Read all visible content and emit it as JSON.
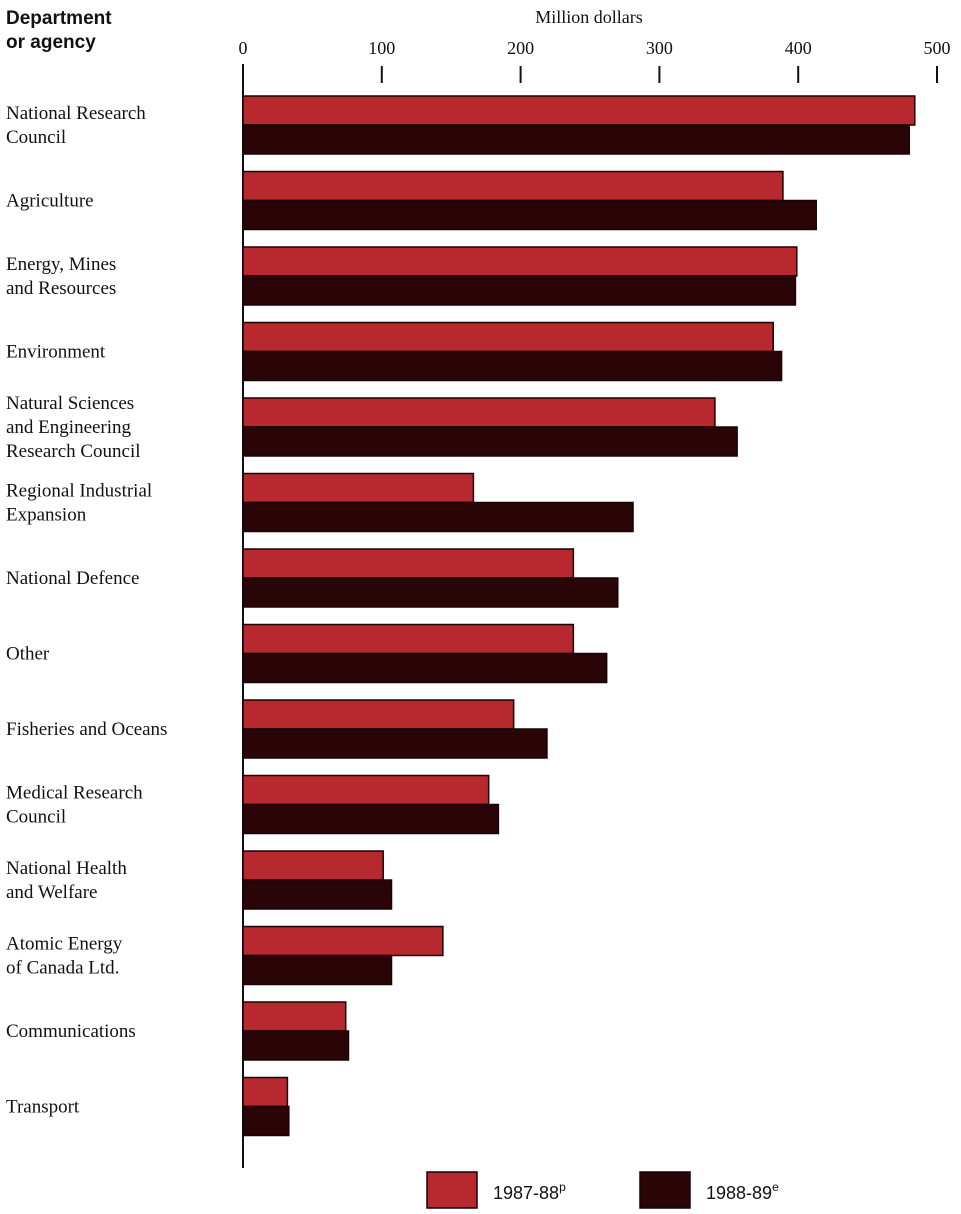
{
  "chart_data": {
    "type": "bar",
    "orientation": "horizontal",
    "category_axis_title": [
      "Department",
      "or agency"
    ],
    "value_axis_title": "Million dollars",
    "xlim": [
      0,
      500
    ],
    "ticks": [
      0,
      100,
      200,
      300,
      400,
      500
    ],
    "grid": false,
    "legend_position": "bottom",
    "categories": [
      [
        "National Research",
        "Council"
      ],
      [
        "Agriculture"
      ],
      [
        "Energy, Mines",
        "and Resources"
      ],
      [
        "Environment"
      ],
      [
        "Natural Sciences",
        "and Engineering",
        "Research Council"
      ],
      [
        "Regional Industrial",
        "Expansion"
      ],
      [
        "National Defence"
      ],
      [
        "Other"
      ],
      [
        "Fisheries and Oceans"
      ],
      [
        "Medical Research",
        "Council"
      ],
      [
        "National Health",
        "and Welfare"
      ],
      [
        "Atomic Energy",
        "of Canada Ltd."
      ],
      [
        "Communications"
      ],
      [
        "Transport"
      ]
    ],
    "series": [
      {
        "name": "1987-88",
        "superscript": "p",
        "color": "#b8282f",
        "values": [
          484,
          389,
          399,
          382,
          340,
          166,
          238,
          238,
          195,
          177,
          101,
          144,
          74,
          32
        ]
      },
      {
        "name": "1988-89",
        "superscript": "e",
        "color": "#2a0508",
        "values": [
          480,
          413,
          398,
          388,
          356,
          281,
          270,
          262,
          219,
          184,
          107,
          107,
          76,
          33
        ]
      }
    ]
  }
}
